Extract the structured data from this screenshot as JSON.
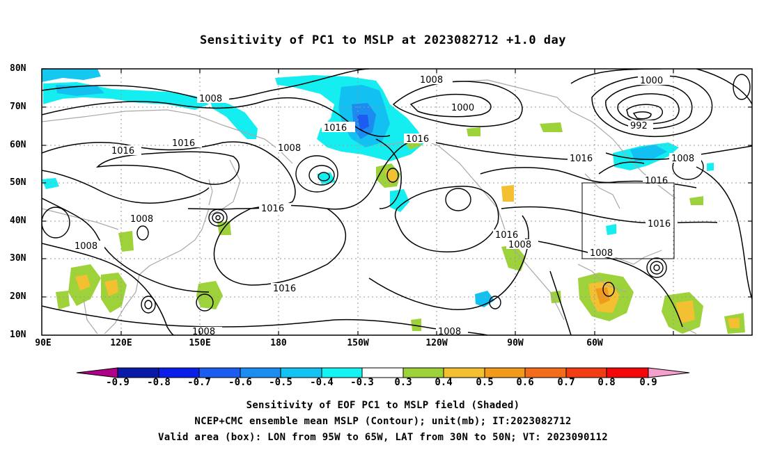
{
  "title": "Sensitivity of PC1 to MSLP at 2023082712 +1.0 day",
  "y_ticks": [
    "80N",
    "70N",
    "60N",
    "50N",
    "40N",
    "30N",
    "20N",
    "10N"
  ],
  "x_ticks": [
    "90E",
    "120E",
    "150E",
    "180",
    "150W",
    "120W",
    "90W",
    "60W"
  ],
  "contour_labels": [
    {
      "text": "1008",
      "name": "label-1008-pacific-north"
    },
    {
      "text": "1000",
      "name": "label-1000-alaska"
    },
    {
      "text": "1016",
      "name": "label-1016-bering"
    },
    {
      "text": "1008",
      "name": "label-1008-siberia"
    },
    {
      "text": "1016",
      "name": "label-1016-okhotsk"
    },
    {
      "text": "1016",
      "name": "label-1016-mongolia"
    },
    {
      "text": "1008",
      "name": "label-1008-aleutian"
    },
    {
      "text": "1016",
      "name": "label-1016-gulf-alaska"
    },
    {
      "text": "1016",
      "name": "label-1016-north-pacific"
    },
    {
      "text": "1000",
      "name": "label-1000-greenland"
    },
    {
      "text": "992",
      "name": "label-992-greenland-low"
    },
    {
      "text": "1016",
      "name": "label-1016-hudson"
    },
    {
      "text": "1008",
      "name": "label-1008-labrador"
    },
    {
      "text": "1016",
      "name": "label-1016-great-lakes"
    },
    {
      "text": "1016",
      "name": "label-1016-east-us"
    },
    {
      "text": "1008",
      "name": "label-1008-gulf"
    },
    {
      "text": "1016",
      "name": "label-1016-west-us"
    },
    {
      "text": "1008",
      "name": "label-1008-california"
    },
    {
      "text": "1008",
      "name": "label-1008-china"
    },
    {
      "text": "1008",
      "name": "label-1008-east-china"
    },
    {
      "text": "1016",
      "name": "label-1016-subtropical"
    },
    {
      "text": "1008",
      "name": "label-1008-west-pacific-south"
    },
    {
      "text": "1008",
      "name": "label-1008-east-pacific-south"
    }
  ],
  "colorbar": {
    "labels": [
      "-0.9",
      "-0.8",
      "-0.7",
      "-0.6",
      "-0.5",
      "-0.4",
      "-0.3",
      "0.3",
      "0.4",
      "0.5",
      "0.6",
      "0.7",
      "0.8",
      "0.9"
    ],
    "colors": [
      "#b0008a",
      "#0a1aa8",
      "#0a1ee8",
      "#1c5cf0",
      "#1c8cf0",
      "#12c2f2",
      "#14f2f2",
      "#ffffff",
      "#9ed23a",
      "#f2c030",
      "#f29a1c",
      "#f26c1c",
      "#f23c14",
      "#f20808",
      "#f5a0cc"
    ]
  },
  "caption": {
    "line1": "Sensitivity of EOF PC1 to MSLP field (Shaded)",
    "line2": "NCEP+CMC ensemble mean MSLP (Contour); unit(mb); IT:2023082712",
    "line3": "Valid area (box): LON from 95W to 65W, LAT from 30N to 50N; VT: 2023090112"
  },
  "valid_area": {
    "lon_min": -95,
    "lon_max": -65,
    "lat_min": 30,
    "lat_max": 50
  }
}
